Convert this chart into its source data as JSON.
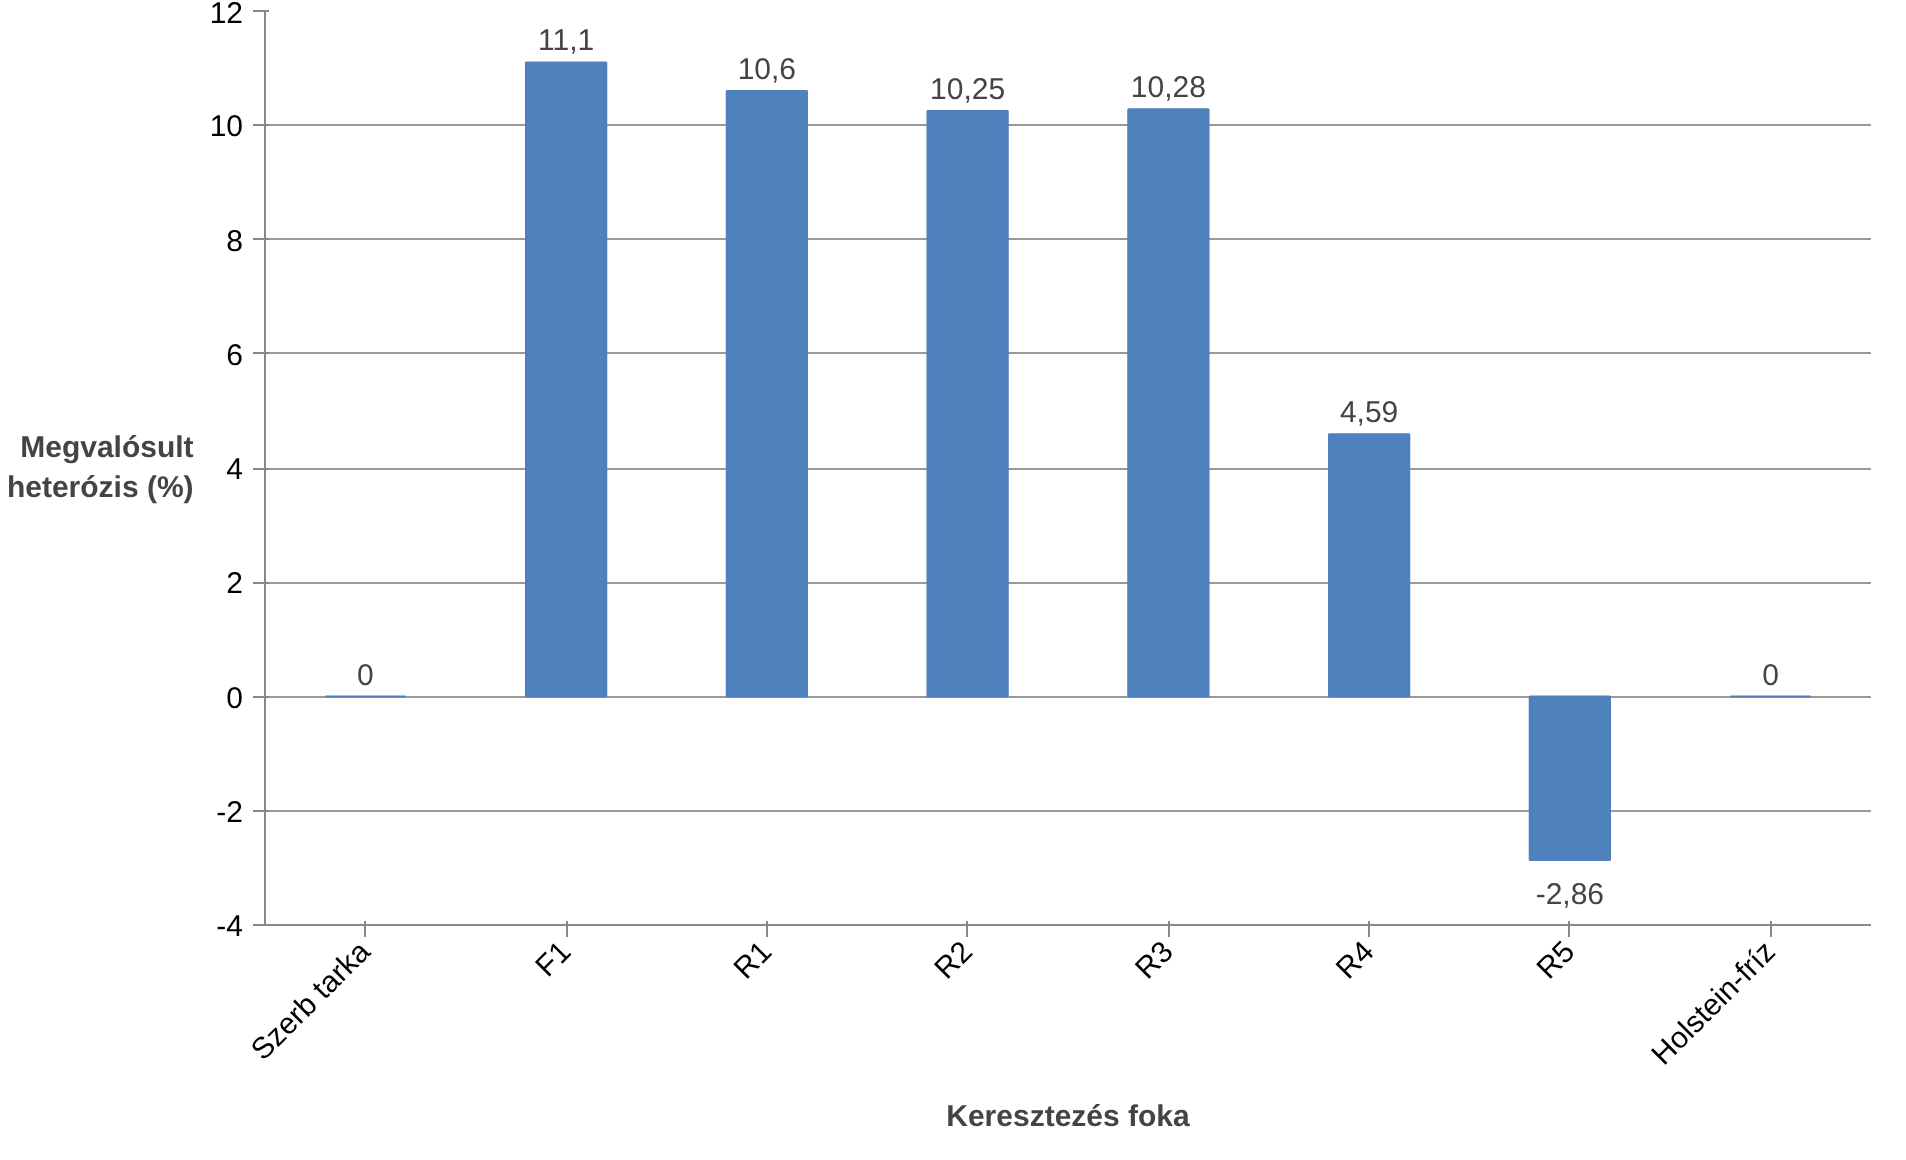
{
  "chart_data": {
    "type": "bar",
    "xlabel": "Keresztezés foka",
    "ylabel": "Megvalósult\nheterózis (%)",
    "categories": [
      "Szerb tarka",
      "F1",
      "R1",
      "R2",
      "R3",
      "R4",
      "R5",
      "Holstein-fríz"
    ],
    "values": [
      0,
      11.1,
      10.6,
      10.25,
      10.28,
      4.59,
      -2.86,
      0
    ],
    "value_labels": [
      "0",
      "11,1",
      "10,6",
      "10,25",
      "10,28",
      "4,59",
      "-2,86",
      "0"
    ],
    "color": "#4f81bd",
    "ylim": [
      -4,
      12
    ],
    "yticks": [
      -4,
      -2,
      0,
      2,
      4,
      6,
      8,
      10,
      12
    ],
    "grid": "y"
  }
}
